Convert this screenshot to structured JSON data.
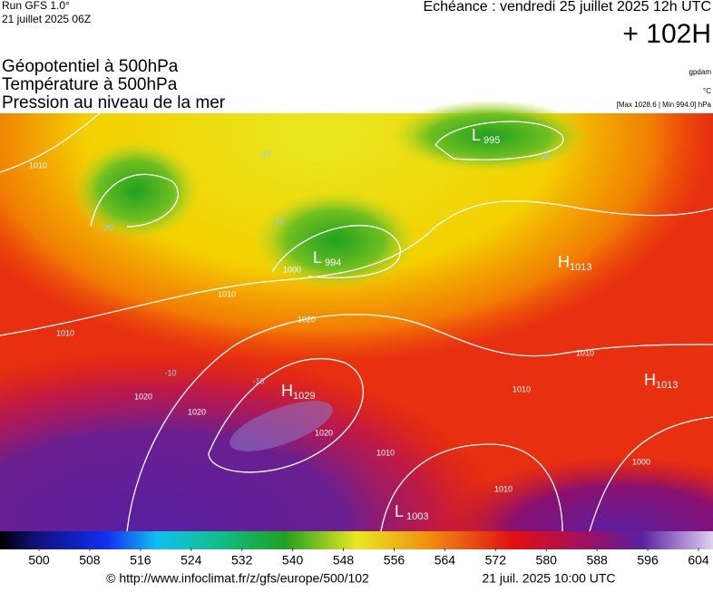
{
  "header": {
    "run": "Run GFS 1.0°",
    "run_date": "21 juillet 2025 06Z",
    "valid_time": "Echéance : vendredi 25 juillet 2025 12h UTC",
    "lead_time": "+ 102H",
    "fields": [
      "Géopotentiel à 500hPa",
      "Température à 500hPa",
      "Pression au niveau de la mer"
    ],
    "units": [
      "gpdam",
      "°C",
      "[Max 1028.6 | Min 994.0] hPa"
    ]
  },
  "map": {
    "centers": [
      {
        "letter": "L",
        "value": "995"
      },
      {
        "letter": "L",
        "value": "994"
      },
      {
        "letter": "H",
        "value": "1029"
      },
      {
        "letter": "H",
        "value": "1013"
      },
      {
        "letter": "H",
        "value": "1013"
      },
      {
        "letter": "L",
        "value": "1003"
      }
    ],
    "isobar_labels": [
      "1010",
      "1010",
      "1020",
      "1000",
      "1010",
      "1020",
      "1020",
      "1020",
      "1010",
      "1010",
      "1000",
      "1010",
      "1010"
    ],
    "temperature_labels": [
      "-20",
      "-20",
      "-20",
      "-20",
      "-10",
      "-10"
    ]
  },
  "colorbar": {
    "ticks": [
      500,
      508,
      516,
      524,
      532,
      540,
      548,
      556,
      564,
      572,
      580,
      588,
      596,
      604
    ]
  },
  "footer": {
    "url": "© http://www.infoclimat.fr/z/gfs/europe/500/102",
    "timestamp": "21 juil. 2025 10:00 UTC"
  }
}
